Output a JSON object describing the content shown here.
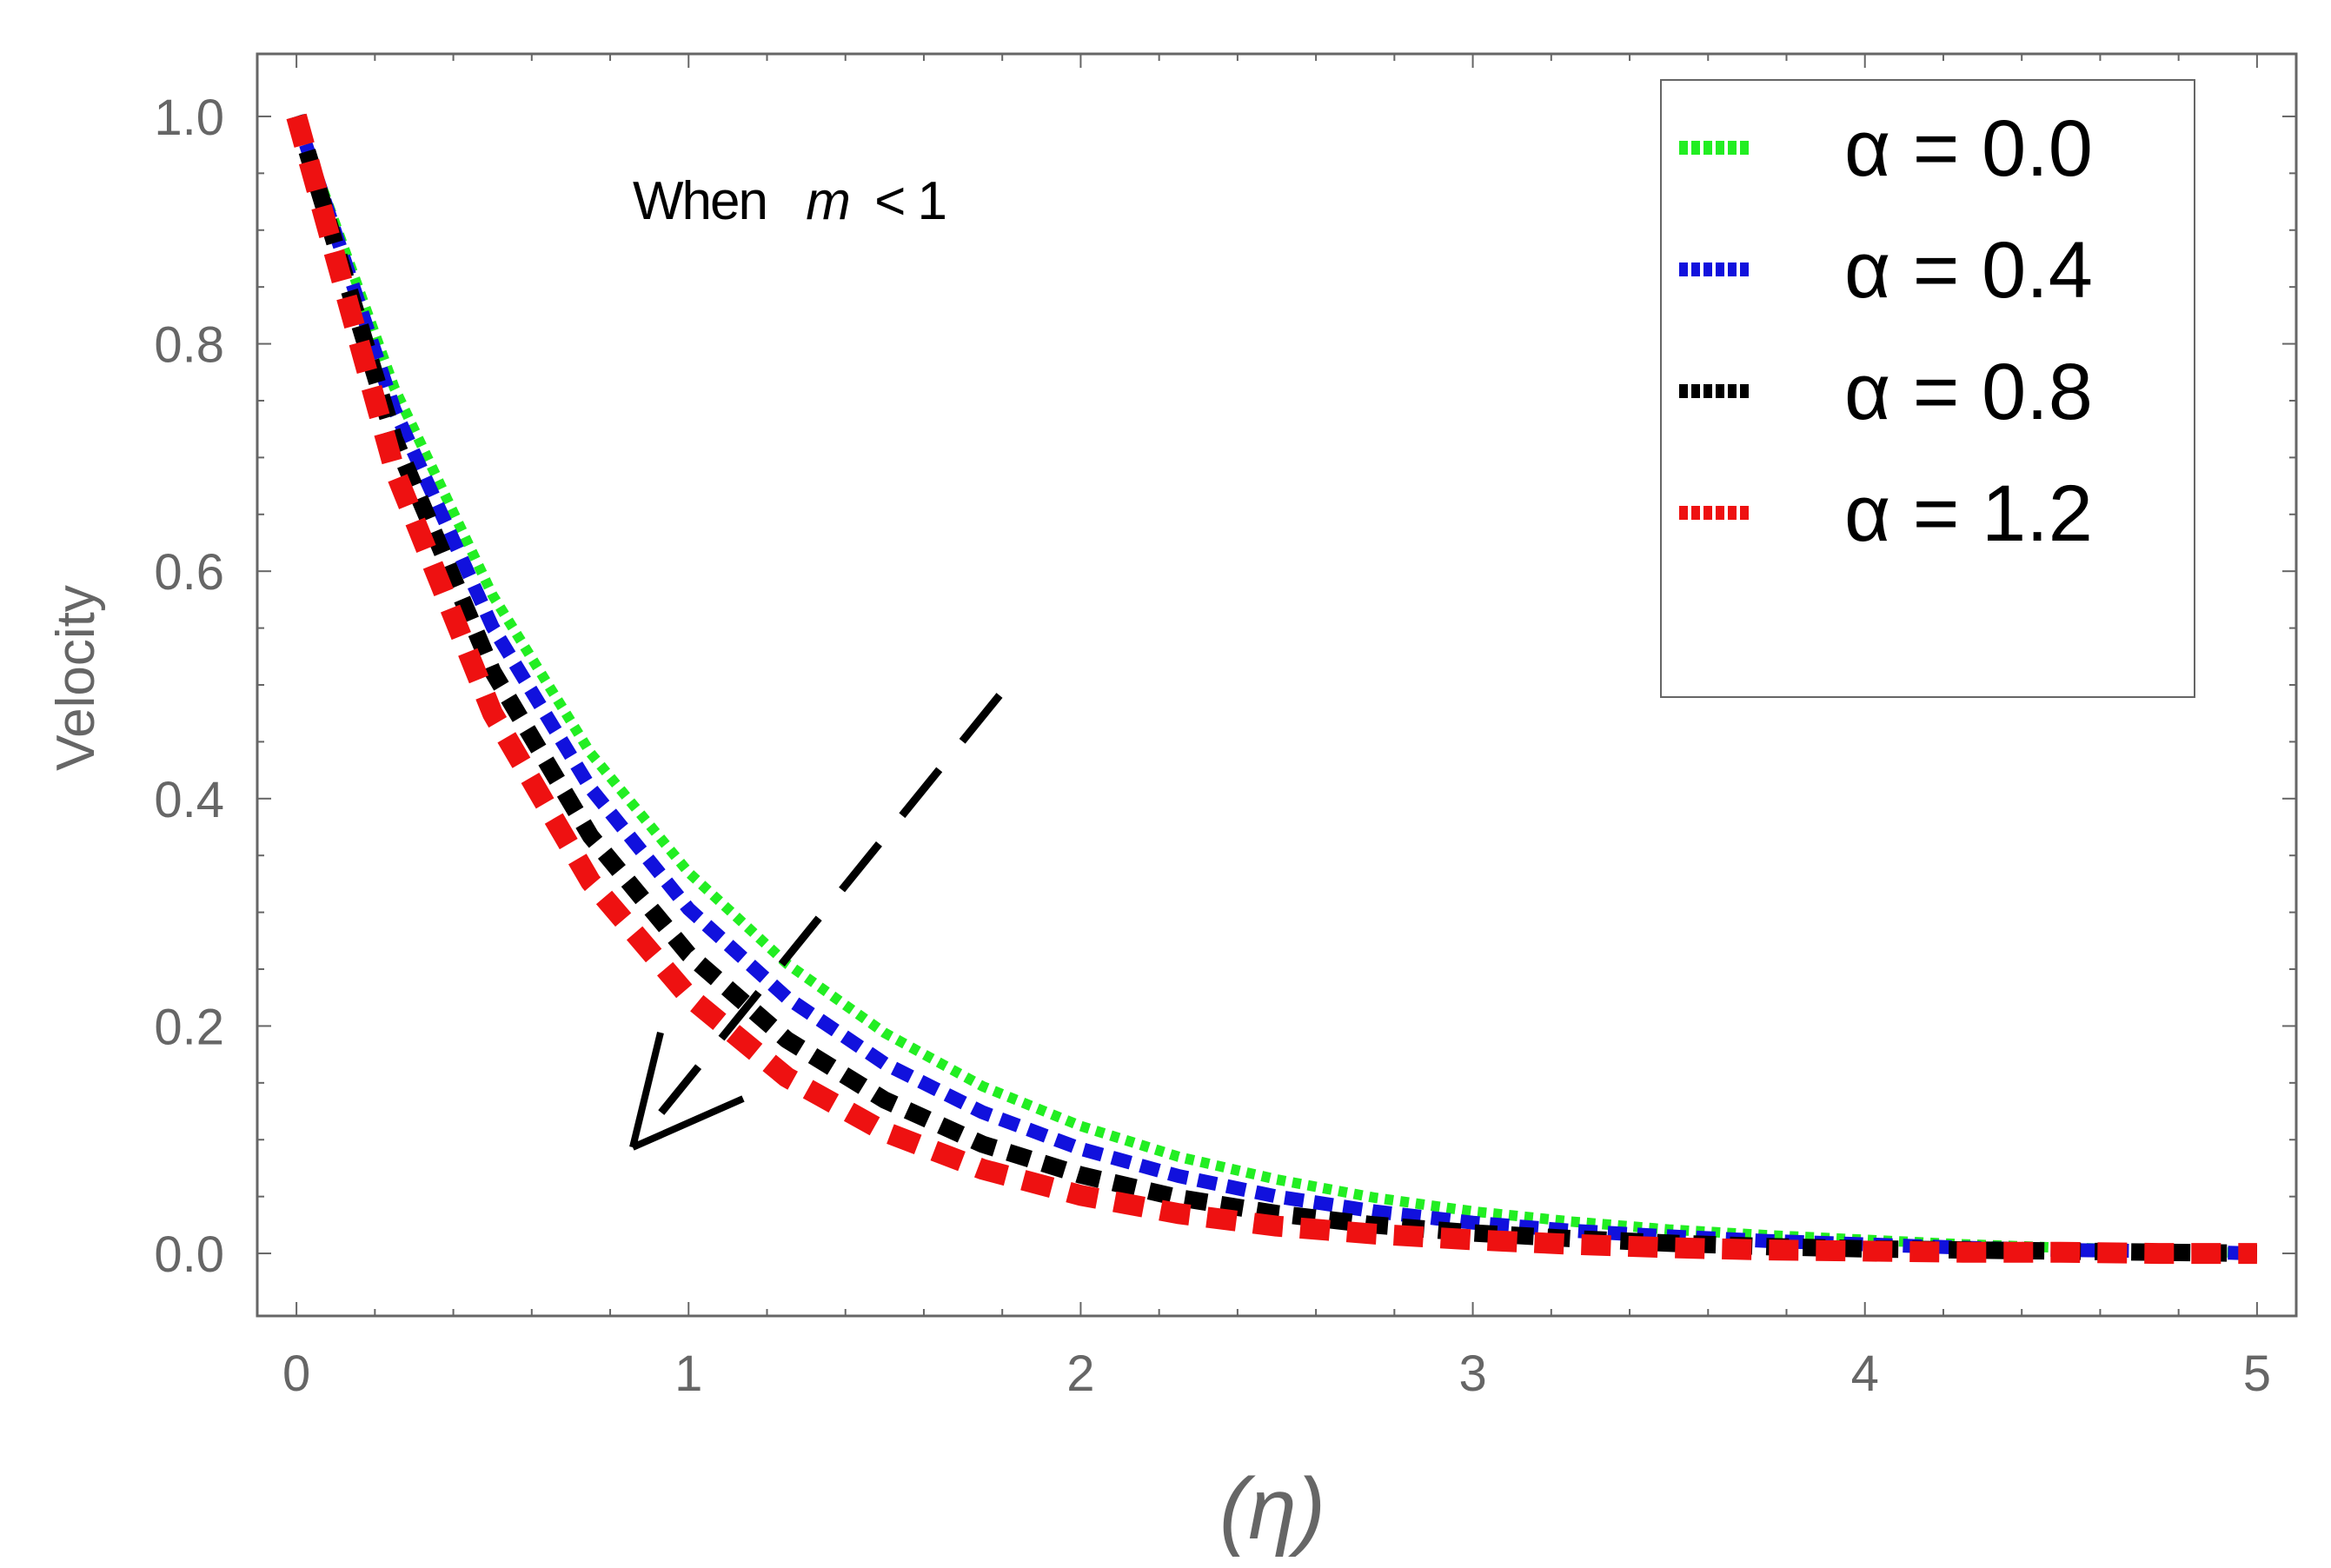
{
  "chart_data": {
    "type": "line",
    "title": "",
    "xlabel": "(η)",
    "ylabel": "Velocity",
    "xlim": [
      -0.1,
      5.1
    ],
    "ylim": [
      -0.055,
      1.055
    ],
    "xticks": [
      0,
      1,
      2,
      3,
      4,
      5
    ],
    "xtick_labels": [
      "0",
      "1",
      "2",
      "3",
      "4",
      "5"
    ],
    "yticks": [
      0.0,
      0.2,
      0.4,
      0.6,
      0.8,
      1.0
    ],
    "ytick_labels": [
      "0.0",
      "0.2",
      "0.4",
      "0.6",
      "0.8",
      "1.0"
    ],
    "grid": false,
    "legend_position": "top-right",
    "annotation": {
      "prefix": "When",
      "variable": "m",
      "relation": "< 1"
    },
    "x": [
      0,
      0.25,
      0.5,
      0.75,
      1.0,
      1.25,
      1.5,
      1.75,
      2.0,
      2.25,
      2.5,
      2.75,
      3.0,
      3.25,
      3.5,
      3.75,
      4.0,
      4.25,
      4.5,
      4.75,
      5.0
    ],
    "series": [
      {
        "name": "α = 0.0",
        "color": "#22ee22",
        "values": [
          1.0,
          0.761,
          0.579,
          0.44,
          0.335,
          0.255,
          0.194,
          0.147,
          0.112,
          0.085,
          0.065,
          0.049,
          0.037,
          0.028,
          0.021,
          0.016,
          0.012,
          0.008,
          0.005,
          0.003,
          0.0
        ]
      },
      {
        "name": "α = 0.4",
        "color": "#1111dd",
        "values": [
          1.0,
          0.742,
          0.551,
          0.409,
          0.303,
          0.225,
          0.167,
          0.124,
          0.092,
          0.068,
          0.05,
          0.037,
          0.027,
          0.02,
          0.015,
          0.011,
          0.008,
          0.005,
          0.003,
          0.002,
          0.0
        ]
      },
      {
        "name": "α = 0.8",
        "color": "#000000",
        "values": [
          1.0,
          0.716,
          0.512,
          0.367,
          0.263,
          0.188,
          0.135,
          0.096,
          0.069,
          0.049,
          0.035,
          0.025,
          0.018,
          0.013,
          0.009,
          0.006,
          0.004,
          0.003,
          0.002,
          0.001,
          0.0
        ]
      },
      {
        "name": "α = 1.2",
        "color": "#ee1111",
        "values": [
          1.0,
          0.689,
          0.475,
          0.327,
          0.226,
          0.155,
          0.107,
          0.074,
          0.051,
          0.035,
          0.024,
          0.017,
          0.012,
          0.008,
          0.005,
          0.003,
          0.002,
          0.001,
          0.001,
          0.0,
          0.0
        ]
      }
    ]
  }
}
